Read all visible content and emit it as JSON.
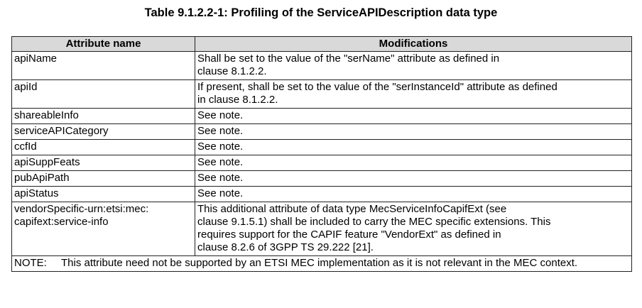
{
  "title": "Table 9.1.2.2-1: Profiling of the ServiceAPIDescription data type",
  "columns": [
    "Attribute name",
    "Modifications"
  ],
  "rows": [
    {
      "name": "apiName",
      "mod": [
        "Shall be set to the value of the \"serName\" attribute as defined in",
        "clause 8.1.2.2."
      ]
    },
    {
      "name": "apiId",
      "mod": [
        "If present, shall be set to the value of the \"serInstanceId\" attribute as defined",
        "in clause 8.1.2.2."
      ]
    },
    {
      "name": "shareableInfo",
      "mod": [
        "See note."
      ]
    },
    {
      "name": "serviceAPICategory",
      "mod": [
        "See note."
      ]
    },
    {
      "name": "ccfId",
      "mod": [
        "See note."
      ]
    },
    {
      "name": "apiSuppFeats",
      "mod": [
        "See note."
      ]
    },
    {
      "name": "pubApiPath",
      "mod": [
        "See note."
      ]
    },
    {
      "name": "apiStatus",
      "mod": [
        "See note."
      ]
    },
    {
      "name": "vendorSpecific-urn:etsi:mec:\ncapifext:service-info",
      "mod": [
        "This additional attribute of data type MecServiceInfoCapifExt (see",
        "clause 9.1.5.1) shall be included to carry the MEC specific extensions. This",
        "requires support for the CAPIF feature \"VendorExt\" as defined in",
        "clause 8.2.6 of 3GPP TS 29.222 [21]."
      ]
    }
  ],
  "note": {
    "label": "NOTE:",
    "text": "This attribute need not be supported by an ETSI MEC implementation as it is not relevant in the MEC context."
  }
}
